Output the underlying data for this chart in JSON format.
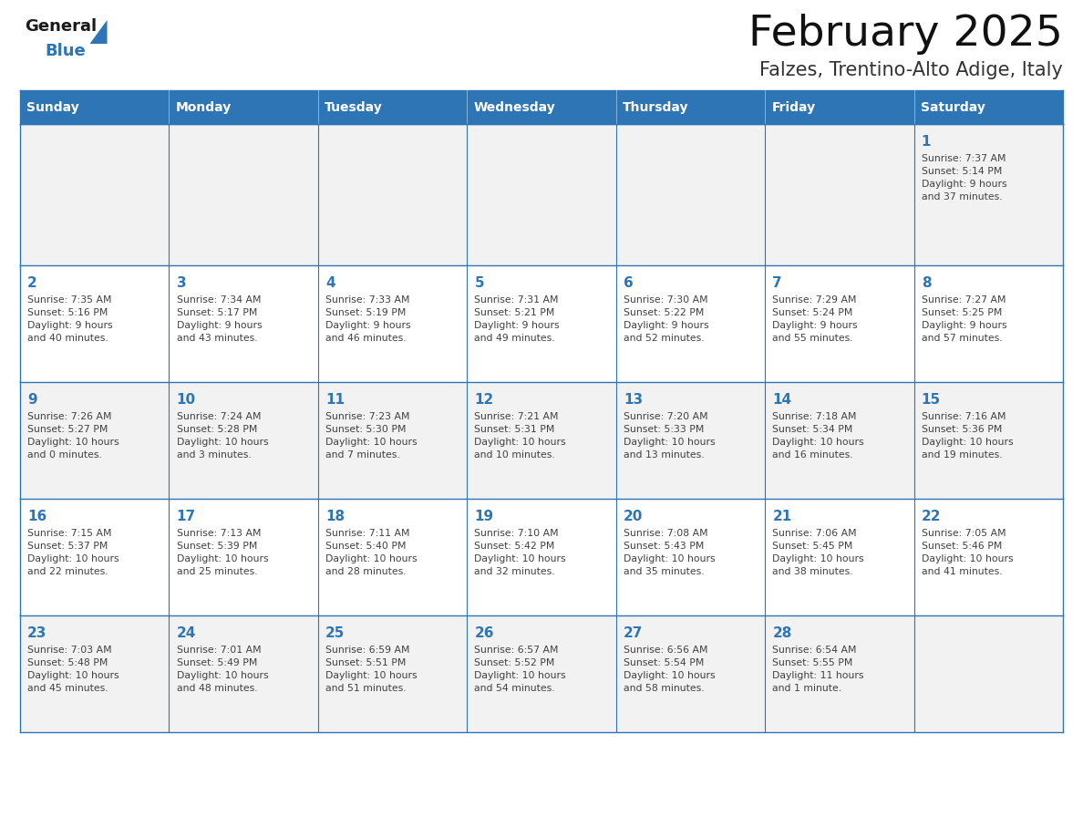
{
  "title": "February 2025",
  "subtitle": "Falzes, Trentino-Alto Adige, Italy",
  "header_bg": "#2E75B6",
  "header_text_color": "#FFFFFF",
  "cell_bg_odd": "#F2F2F2",
  "cell_bg_even": "#FFFFFF",
  "cell_border_color": "#2E75B6",
  "day_number_color": "#2E75B6",
  "cell_text_color": "#404040",
  "title_color": "#111111",
  "subtitle_color": "#333333",
  "days_of_week": [
    "Sunday",
    "Monday",
    "Tuesday",
    "Wednesday",
    "Thursday",
    "Friday",
    "Saturday"
  ],
  "logo_general_color": "#1A1A1A",
  "logo_blue_color": "#2E75B6",
  "calendar_data": [
    [
      null,
      null,
      null,
      null,
      null,
      null,
      {
        "day": 1,
        "sunrise": "7:37 AM",
        "sunset": "5:14 PM",
        "daylight": "9 hours\nand 37 minutes."
      }
    ],
    [
      {
        "day": 2,
        "sunrise": "7:35 AM",
        "sunset": "5:16 PM",
        "daylight": "9 hours\nand 40 minutes."
      },
      {
        "day": 3,
        "sunrise": "7:34 AM",
        "sunset": "5:17 PM",
        "daylight": "9 hours\nand 43 minutes."
      },
      {
        "day": 4,
        "sunrise": "7:33 AM",
        "sunset": "5:19 PM",
        "daylight": "9 hours\nand 46 minutes."
      },
      {
        "day": 5,
        "sunrise": "7:31 AM",
        "sunset": "5:21 PM",
        "daylight": "9 hours\nand 49 minutes."
      },
      {
        "day": 6,
        "sunrise": "7:30 AM",
        "sunset": "5:22 PM",
        "daylight": "9 hours\nand 52 minutes."
      },
      {
        "day": 7,
        "sunrise": "7:29 AM",
        "sunset": "5:24 PM",
        "daylight": "9 hours\nand 55 minutes."
      },
      {
        "day": 8,
        "sunrise": "7:27 AM",
        "sunset": "5:25 PM",
        "daylight": "9 hours\nand 57 minutes."
      }
    ],
    [
      {
        "day": 9,
        "sunrise": "7:26 AM",
        "sunset": "5:27 PM",
        "daylight": "10 hours\nand 0 minutes."
      },
      {
        "day": 10,
        "sunrise": "7:24 AM",
        "sunset": "5:28 PM",
        "daylight": "10 hours\nand 3 minutes."
      },
      {
        "day": 11,
        "sunrise": "7:23 AM",
        "sunset": "5:30 PM",
        "daylight": "10 hours\nand 7 minutes."
      },
      {
        "day": 12,
        "sunrise": "7:21 AM",
        "sunset": "5:31 PM",
        "daylight": "10 hours\nand 10 minutes."
      },
      {
        "day": 13,
        "sunrise": "7:20 AM",
        "sunset": "5:33 PM",
        "daylight": "10 hours\nand 13 minutes."
      },
      {
        "day": 14,
        "sunrise": "7:18 AM",
        "sunset": "5:34 PM",
        "daylight": "10 hours\nand 16 minutes."
      },
      {
        "day": 15,
        "sunrise": "7:16 AM",
        "sunset": "5:36 PM",
        "daylight": "10 hours\nand 19 minutes."
      }
    ],
    [
      {
        "day": 16,
        "sunrise": "7:15 AM",
        "sunset": "5:37 PM",
        "daylight": "10 hours\nand 22 minutes."
      },
      {
        "day": 17,
        "sunrise": "7:13 AM",
        "sunset": "5:39 PM",
        "daylight": "10 hours\nand 25 minutes."
      },
      {
        "day": 18,
        "sunrise": "7:11 AM",
        "sunset": "5:40 PM",
        "daylight": "10 hours\nand 28 minutes."
      },
      {
        "day": 19,
        "sunrise": "7:10 AM",
        "sunset": "5:42 PM",
        "daylight": "10 hours\nand 32 minutes."
      },
      {
        "day": 20,
        "sunrise": "7:08 AM",
        "sunset": "5:43 PM",
        "daylight": "10 hours\nand 35 minutes."
      },
      {
        "day": 21,
        "sunrise": "7:06 AM",
        "sunset": "5:45 PM",
        "daylight": "10 hours\nand 38 minutes."
      },
      {
        "day": 22,
        "sunrise": "7:05 AM",
        "sunset": "5:46 PM",
        "daylight": "10 hours\nand 41 minutes."
      }
    ],
    [
      {
        "day": 23,
        "sunrise": "7:03 AM",
        "sunset": "5:48 PM",
        "daylight": "10 hours\nand 45 minutes."
      },
      {
        "day": 24,
        "sunrise": "7:01 AM",
        "sunset": "5:49 PM",
        "daylight": "10 hours\nand 48 minutes."
      },
      {
        "day": 25,
        "sunrise": "6:59 AM",
        "sunset": "5:51 PM",
        "daylight": "10 hours\nand 51 minutes."
      },
      {
        "day": 26,
        "sunrise": "6:57 AM",
        "sunset": "5:52 PM",
        "daylight": "10 hours\nand 54 minutes."
      },
      {
        "day": 27,
        "sunrise": "6:56 AM",
        "sunset": "5:54 PM",
        "daylight": "10 hours\nand 58 minutes."
      },
      {
        "day": 28,
        "sunrise": "6:54 AM",
        "sunset": "5:55 PM",
        "daylight": "11 hours\nand 1 minute."
      },
      null
    ]
  ]
}
